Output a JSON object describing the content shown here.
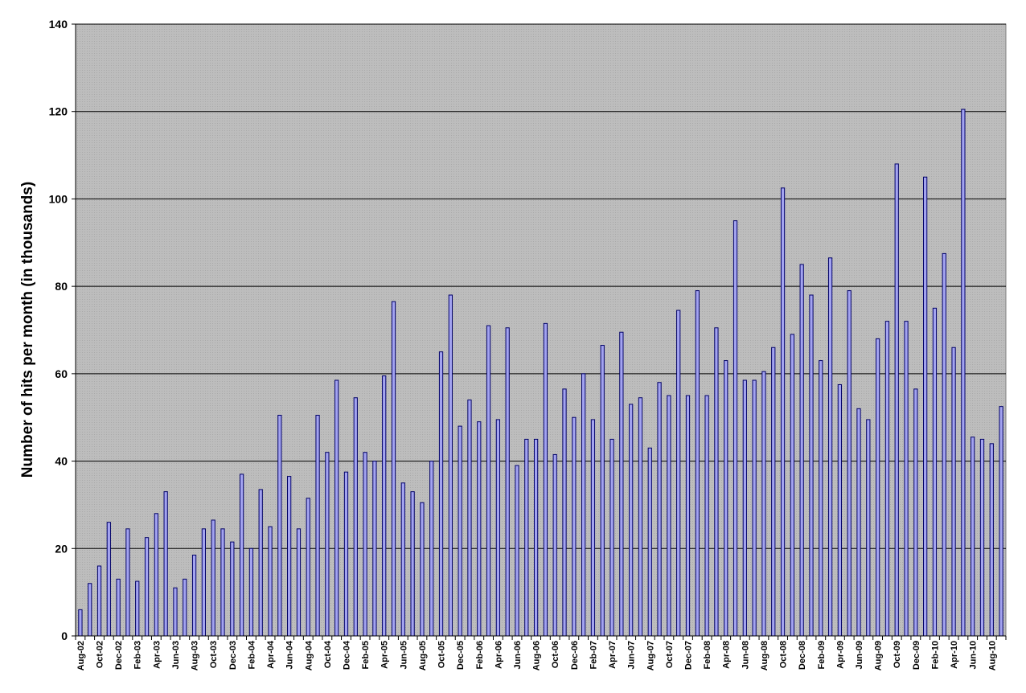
{
  "chart_data": {
    "type": "bar",
    "title": "",
    "xlabel": "",
    "ylabel": "Number of hits per month (in thousands)",
    "ylim": [
      0,
      140
    ],
    "yticks": [
      0,
      20,
      40,
      60,
      80,
      100,
      120,
      140
    ],
    "grid": true,
    "legend": "none",
    "colors": {
      "bar_fill": "#a3a3f0",
      "bar_stroke": "#000066",
      "plot_background": "#c0c0c0",
      "gridline": "#000000"
    },
    "tick_labels": [
      "Aug-02",
      "Oct-02",
      "Dec-02",
      "Feb-03",
      "Apr-03",
      "Jun-03",
      "Aug-03",
      "Oct-03",
      "Dec-03",
      "Feb-04",
      "Apr-04",
      "Jun-04",
      "Aug-04",
      "Oct-04",
      "Dec-04",
      "Feb-05",
      "Apr-05",
      "Jun-05",
      "Aug-05",
      "Oct-05",
      "Dec-05",
      "Feb-06",
      "Apr-06",
      "Jun-06",
      "Aug-06",
      "Oct-06",
      "Dec-06",
      "Feb-07",
      "Apr-07",
      "Jun-07",
      "Aug-07",
      "Oct-07",
      "Dec-07",
      "Feb-08",
      "Apr-08",
      "Jun-08",
      "Aug-08",
      "Oct-08",
      "Dec-08",
      "Feb-09",
      "Apr-09",
      "Jun-09",
      "Aug-09",
      "Oct-09",
      "Dec-09",
      "Feb-10",
      "Apr-10",
      "Jun-10",
      "Aug-10"
    ],
    "categories": [
      "Aug-02",
      "Sep-02",
      "Oct-02",
      "Nov-02",
      "Dec-02",
      "Jan-03",
      "Feb-03",
      "Mar-03",
      "Apr-03",
      "May-03",
      "Jun-03",
      "Jul-03",
      "Aug-03",
      "Sep-03",
      "Oct-03",
      "Nov-03",
      "Dec-03",
      "Jan-04",
      "Feb-04",
      "Mar-04",
      "Apr-04",
      "May-04",
      "Jun-04",
      "Jul-04",
      "Aug-04",
      "Sep-04",
      "Oct-04",
      "Nov-04",
      "Dec-04",
      "Jan-05",
      "Feb-05",
      "Mar-05",
      "Apr-05",
      "May-05",
      "Jun-05",
      "Jul-05",
      "Aug-05",
      "Sep-05",
      "Oct-05",
      "Nov-05",
      "Dec-05",
      "Jan-06",
      "Feb-06",
      "Mar-06",
      "Apr-06",
      "May-06",
      "Jun-06",
      "Jul-06",
      "Aug-06",
      "Sep-06",
      "Oct-06",
      "Nov-06",
      "Dec-06",
      "Jan-07",
      "Feb-07",
      "Mar-07",
      "Apr-07",
      "May-07",
      "Jun-07",
      "Jul-07",
      "Aug-07",
      "Sep-07",
      "Oct-07",
      "Nov-07",
      "Dec-07",
      "Jan-08",
      "Feb-08",
      "Mar-08",
      "Apr-08",
      "May-08",
      "Jun-08",
      "Jul-08",
      "Aug-08",
      "Sep-08",
      "Oct-08",
      "Nov-08",
      "Dec-08",
      "Jan-09",
      "Feb-09",
      "Mar-09",
      "Apr-09",
      "May-09",
      "Jun-09",
      "Jul-09",
      "Aug-09",
      "Sep-09",
      "Oct-09",
      "Nov-09",
      "Dec-09",
      "Jan-10",
      "Feb-10",
      "Mar-10",
      "Apr-10",
      "May-10",
      "Jun-10",
      "Jul-10",
      "Aug-10",
      "Sep-10"
    ],
    "values": [
      6,
      12,
      16,
      26,
      13,
      24.5,
      12.5,
      22.5,
      28,
      33,
      11,
      13,
      18.5,
      24.5,
      26.5,
      24.5,
      21.5,
      37,
      20,
      33.5,
      25,
      50.5,
      36.5,
      24.5,
      31.5,
      50.5,
      42,
      58.5,
      37.5,
      54.5,
      42,
      40,
      59.5,
      76.5,
      35,
      33,
      30.5,
      40,
      65,
      78,
      48,
      54,
      49,
      71,
      49.5,
      70.5,
      39,
      45,
      45,
      71.5,
      41.5,
      56.5,
      50,
      60,
      49.5,
      66.5,
      45,
      69.5,
      53,
      54.5,
      43,
      58,
      55,
      74.5,
      55,
      79,
      55,
      70.5,
      63,
      95,
      58.5,
      58.5,
      60.5,
      66,
      102.5,
      69,
      85,
      78,
      63,
      86.5,
      57.5,
      79,
      52,
      49.5,
      68,
      72,
      108,
      72,
      56.5,
      105,
      75,
      87.5,
      66,
      120.5,
      45.5,
      45,
      44,
      52.5
    ]
  }
}
